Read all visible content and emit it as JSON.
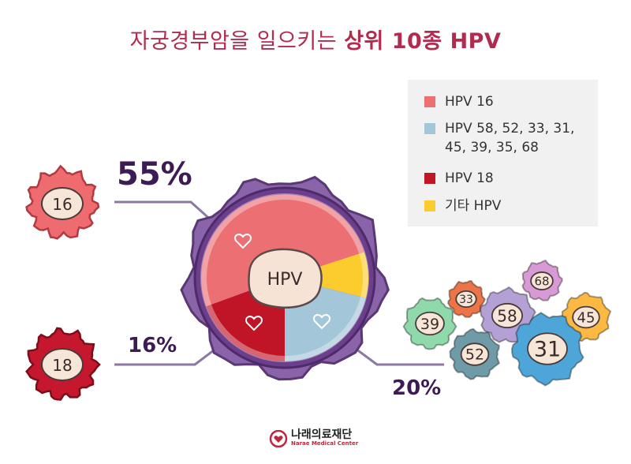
{
  "title": {
    "normal": "자궁경부암을 일으키는 ",
    "bold": "상위 10종 HPV"
  },
  "chart_data": {
    "type": "pie",
    "center_label": "HPV",
    "slices": [
      {
        "name": "HPV 16",
        "value": 55,
        "color": "#ec6f73",
        "label": "55%"
      },
      {
        "name": "HPV 18",
        "value": 16,
        "color": "#c01427",
        "label": "16%"
      },
      {
        "name": "HPV 58, 52, 33, 31, 45, 39, 35, 68",
        "value": 20,
        "color": "#a4c6d9",
        "label": "20%"
      },
      {
        "name": "기타 HPV",
        "value": 9,
        "color": "#fccc2e"
      }
    ]
  },
  "legend": [
    {
      "label": "HPV 16",
      "color": "#ec6f73"
    },
    {
      "label": "HPV 58, 52, 33, 31,\n45, 39, 35, 68",
      "color": "#a4c6d9"
    },
    {
      "label": "HPV 18",
      "color": "#c01427"
    },
    {
      "label": "기타 HPV",
      "color": "#fccc2e"
    }
  ],
  "cells": {
    "hpv16": {
      "label": "16",
      "color": "#ee6b6f"
    },
    "hpv18": {
      "label": "18",
      "color": "#c5172d"
    },
    "cluster": [
      {
        "label": "39",
        "color": "#8fd9ab"
      },
      {
        "label": "33",
        "color": "#ec7447"
      },
      {
        "label": "68",
        "color": "#d79ad6"
      },
      {
        "label": "58",
        "color": "#b3a1d5"
      },
      {
        "label": "45",
        "color": "#fbb842"
      },
      {
        "label": "52",
        "color": "#6f9ba9"
      },
      {
        "label": "31",
        "color": "#4ea5d8"
      }
    ]
  },
  "logo": {
    "name": "나래의료재단",
    "sub": "Narae Medical Center"
  }
}
